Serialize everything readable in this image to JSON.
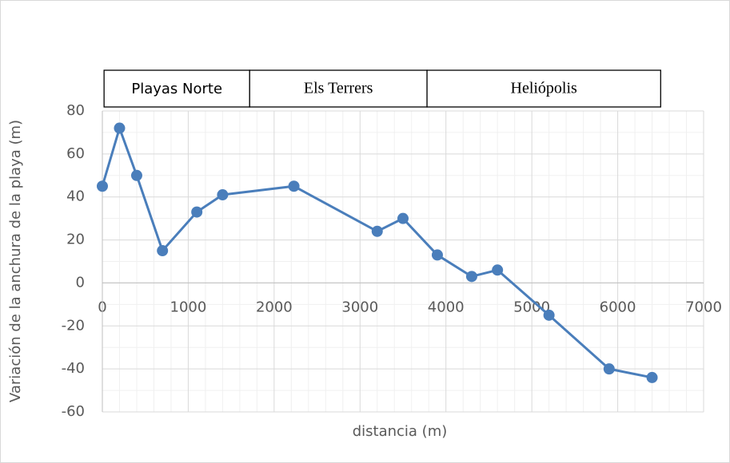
{
  "chart_data": {
    "type": "line",
    "x_label": "distancia (m)",
    "y_label": "Variación de la anchura de la playa (m)",
    "x": [
      0,
      200,
      400,
      700,
      1100,
      1400,
      2230,
      3200,
      3500,
      3900,
      4300,
      4600,
      5200,
      5900,
      6400
    ],
    "series": [
      {
        "name": "Variación",
        "color": "#4a7ebb",
        "values": [
          45,
          72,
          50,
          15,
          33,
          41,
          45,
          24,
          30,
          13,
          3,
          6,
          -15,
          -40,
          -44
        ]
      }
    ],
    "xlim": [
      0,
      7000
    ],
    "xticks": [
      0,
      1000,
      2000,
      3000,
      4000,
      5000,
      6000,
      7000
    ],
    "ylim": [
      -60,
      80
    ],
    "yticks": [
      -60,
      -40,
      -20,
      0,
      20,
      40,
      60,
      80
    ],
    "grid": true,
    "minor_grid": true,
    "zones": [
      {
        "label": "Playas Norte",
        "from": 20,
        "to": 1715
      },
      {
        "label": "Els Terrers",
        "from": 1715,
        "to": 3780
      },
      {
        "label": "Heliópolis",
        "from": 3780,
        "to": 6500
      }
    ]
  }
}
